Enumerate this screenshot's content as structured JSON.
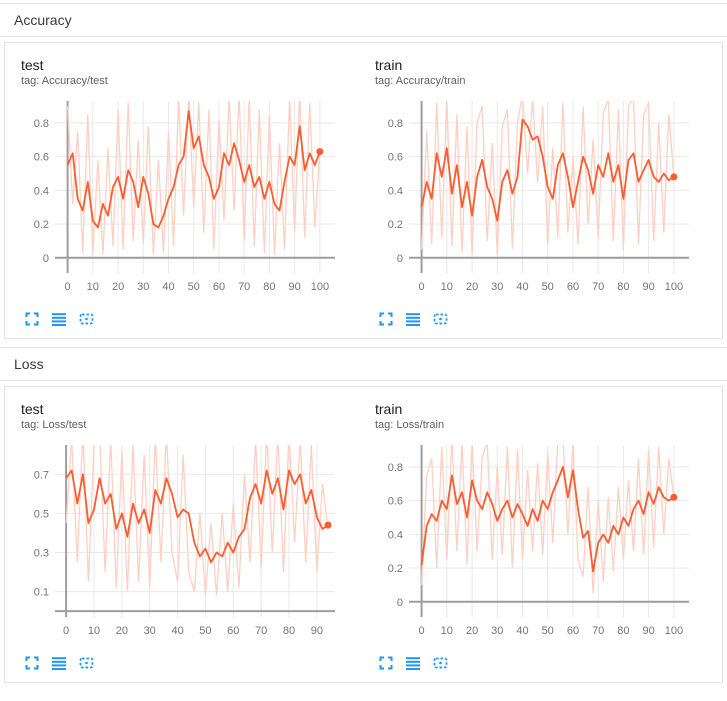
{
  "theme": {
    "accent_orange": "#f95d31",
    "raw_line": "#ffd0c2",
    "icon_blue": "#2196f3",
    "grid": "#e9e9e9",
    "axis_zero": "#9e9e9e",
    "tick_text": "#757575"
  },
  "sections": [
    {
      "title": "Accuracy"
    },
    {
      "title": "Loss"
    }
  ],
  "toolbar": {
    "icons": [
      {
        "name": "fullscreen"
      },
      {
        "name": "log-scale"
      },
      {
        "name": "fit-domain"
      }
    ]
  },
  "chart_data": [
    {
      "type": "line",
      "title": "test",
      "tag": "tag: Accuracy/test",
      "xlabel": "",
      "ylabel": "",
      "xlim": [
        -5,
        106
      ],
      "ylim": [
        -0.09,
        0.93
      ],
      "xticks": [
        0,
        10,
        20,
        30,
        40,
        50,
        60,
        70,
        80,
        90,
        100
      ],
      "yticks": [
        0,
        0.2,
        0.4,
        0.6,
        0.8
      ],
      "x_start": 0,
      "x_step": 2,
      "end_dot": true,
      "series": [
        {
          "name": "raw",
          "values": [
            0.9,
            0.32,
            0.75,
            0.03,
            0.85,
            0.02,
            0.58,
            0.02,
            0.65,
            0.07,
            0.88,
            0.05,
            0.92,
            0.1,
            0.7,
            0.08,
            0.78,
            0.02,
            0.58,
            0.03,
            0.75,
            0.07,
            0.95,
            0.25,
            0.97,
            0.3,
            0.92,
            0.15,
            0.88,
            0.05,
            0.82,
            0.22,
            0.95,
            0.28,
            0.98,
            0.1,
            0.95,
            0.07,
            0.88,
            0.03,
            0.85,
            0.02,
            0.68,
            0.05,
            0.95,
            0.15,
            0.98,
            0.12,
            0.92,
            0.18,
            0.63
          ]
        },
        {
          "name": "smoothed",
          "values": [
            0.55,
            0.62,
            0.35,
            0.28,
            0.45,
            0.22,
            0.18,
            0.32,
            0.25,
            0.42,
            0.48,
            0.35,
            0.52,
            0.45,
            0.3,
            0.48,
            0.38,
            0.2,
            0.18,
            0.25,
            0.35,
            0.42,
            0.55,
            0.6,
            0.87,
            0.65,
            0.72,
            0.55,
            0.48,
            0.35,
            0.42,
            0.62,
            0.55,
            0.68,
            0.58,
            0.45,
            0.55,
            0.42,
            0.48,
            0.35,
            0.45,
            0.32,
            0.28,
            0.45,
            0.6,
            0.55,
            0.78,
            0.52,
            0.62,
            0.55,
            0.63
          ]
        }
      ]
    },
    {
      "type": "line",
      "title": "train",
      "tag": "tag: Accuracy/train",
      "xlabel": "",
      "ylabel": "",
      "xlim": [
        -5,
        106
      ],
      "ylim": [
        -0.09,
        0.93
      ],
      "xticks": [
        0,
        10,
        20,
        30,
        40,
        50,
        60,
        70,
        80,
        90,
        100
      ],
      "yticks": [
        0,
        0.2,
        0.4,
        0.6,
        0.8
      ],
      "x_start": 0,
      "x_step": 2,
      "end_dot": true,
      "series": [
        {
          "name": "raw",
          "values": [
            0.05,
            0.75,
            0.08,
            0.92,
            0.12,
            0.95,
            0.07,
            0.85,
            0.03,
            0.78,
            0.02,
            0.8,
            0.9,
            0.1,
            0.68,
            0.02,
            0.78,
            0.88,
            0.05,
            0.8,
            0.97,
            0.5,
            0.95,
            0.45,
            0.9,
            0.08,
            0.65,
            0.12,
            0.92,
            0.15,
            0.6,
            0.08,
            0.9,
            0.2,
            0.7,
            0.12,
            0.85,
            0.95,
            0.1,
            0.88,
            0.05,
            0.9,
            0.95,
            0.08,
            0.85,
            0.92,
            0.1,
            0.8,
            0.15,
            0.85,
            0.48
          ]
        },
        {
          "name": "smoothed",
          "values": [
            0.3,
            0.45,
            0.35,
            0.62,
            0.48,
            0.65,
            0.38,
            0.55,
            0.3,
            0.45,
            0.25,
            0.48,
            0.58,
            0.42,
            0.35,
            0.22,
            0.45,
            0.52,
            0.38,
            0.48,
            0.82,
            0.78,
            0.7,
            0.72,
            0.6,
            0.42,
            0.35,
            0.55,
            0.62,
            0.48,
            0.3,
            0.45,
            0.6,
            0.52,
            0.38,
            0.55,
            0.48,
            0.62,
            0.45,
            0.55,
            0.35,
            0.58,
            0.62,
            0.45,
            0.52,
            0.58,
            0.48,
            0.45,
            0.5,
            0.46,
            0.48
          ]
        }
      ]
    },
    {
      "type": "line",
      "title": "test",
      "tag": "tag: Loss/test",
      "xlabel": "",
      "ylabel": "",
      "xlim": [
        -4,
        96.5
      ],
      "ylim": [
        -0.03,
        0.85
      ],
      "xticks": [
        0,
        10,
        20,
        30,
        40,
        50,
        60,
        70,
        80,
        90
      ],
      "yticks": [
        0.1,
        0.3,
        0.5,
        0.7
      ],
      "x_start": 0,
      "x_step": 2,
      "end_dot": true,
      "series": [
        {
          "name": "raw",
          "values": [
            0.45,
            0.88,
            0.25,
            0.92,
            0.15,
            0.85,
            0.92,
            0.2,
            0.88,
            0.12,
            0.82,
            0.1,
            0.85,
            0.15,
            0.8,
            0.12,
            0.9,
            0.25,
            0.92,
            0.3,
            0.15,
            0.8,
            0.2,
            0.1,
            0.5,
            0.08,
            0.45,
            0.08,
            0.5,
            0.1,
            0.55,
            0.12,
            0.7,
            0.25,
            0.88,
            0.22,
            0.92,
            0.3,
            0.9,
            0.2,
            0.92,
            0.35,
            0.88,
            0.25,
            0.85,
            0.2,
            0.65,
            0.42
          ]
        },
        {
          "name": "smoothed",
          "values": [
            0.68,
            0.72,
            0.55,
            0.7,
            0.45,
            0.52,
            0.68,
            0.55,
            0.6,
            0.42,
            0.5,
            0.38,
            0.55,
            0.45,
            0.52,
            0.4,
            0.62,
            0.55,
            0.68,
            0.6,
            0.48,
            0.52,
            0.5,
            0.35,
            0.28,
            0.32,
            0.25,
            0.3,
            0.28,
            0.35,
            0.3,
            0.38,
            0.42,
            0.58,
            0.65,
            0.55,
            0.72,
            0.6,
            0.68,
            0.52,
            0.72,
            0.65,
            0.7,
            0.55,
            0.62,
            0.48,
            0.42,
            0.44
          ]
        }
      ]
    },
    {
      "type": "line",
      "title": "train",
      "tag": "tag: Loss/train",
      "xlabel": "",
      "ylabel": "",
      "xlim": [
        -5,
        106
      ],
      "ylim": [
        -0.09,
        0.93
      ],
      "xticks": [
        0,
        10,
        20,
        30,
        40,
        50,
        60,
        70,
        80,
        90,
        100
      ],
      "yticks": [
        0,
        0.2,
        0.4,
        0.6,
        0.8
      ],
      "x_start": 0,
      "x_step": 2,
      "end_dot": true,
      "series": [
        {
          "name": "raw",
          "values": [
            0.1,
            0.75,
            0.85,
            0.2,
            0.92,
            0.25,
            0.97,
            0.3,
            0.95,
            0.22,
            0.95,
            0.3,
            0.85,
            0.95,
            0.25,
            0.8,
            0.28,
            0.92,
            0.2,
            0.9,
            0.25,
            0.78,
            0.3,
            0.82,
            0.28,
            0.88,
            0.35,
            0.95,
            0.97,
            0.4,
            0.95,
            0.25,
            0.15,
            0.68,
            0.05,
            0.6,
            0.12,
            0.62,
            0.18,
            0.68,
            0.25,
            0.72,
            0.3,
            0.85,
            0.28,
            0.9,
            0.32,
            0.92,
            0.4,
            0.85,
            0.62
          ]
        },
        {
          "name": "smoothed",
          "values": [
            0.22,
            0.45,
            0.52,
            0.48,
            0.6,
            0.55,
            0.75,
            0.58,
            0.65,
            0.5,
            0.72,
            0.6,
            0.55,
            0.65,
            0.58,
            0.48,
            0.55,
            0.6,
            0.5,
            0.58,
            0.52,
            0.45,
            0.55,
            0.48,
            0.6,
            0.55,
            0.65,
            0.72,
            0.8,
            0.62,
            0.78,
            0.55,
            0.38,
            0.42,
            0.18,
            0.35,
            0.4,
            0.35,
            0.45,
            0.4,
            0.5,
            0.45,
            0.55,
            0.6,
            0.52,
            0.65,
            0.58,
            0.68,
            0.62,
            0.6,
            0.62
          ]
        }
      ]
    }
  ]
}
